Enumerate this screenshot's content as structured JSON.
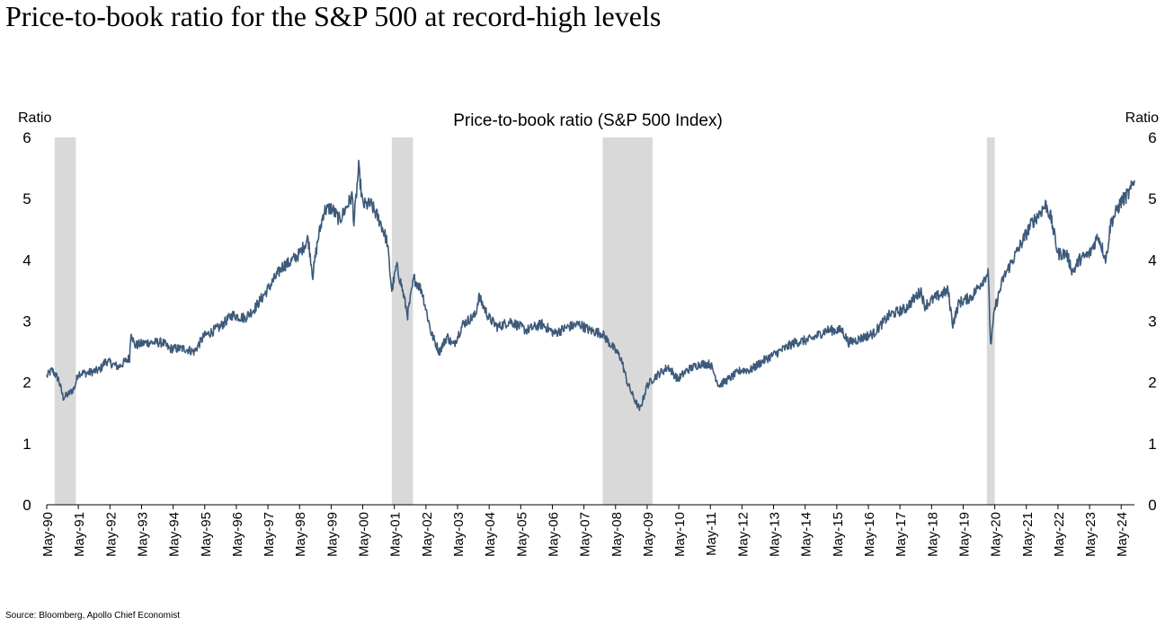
{
  "headline": "Price-to-book ratio for the S&P 500 at record-high levels",
  "source": "Source: Bloomberg, Apollo Chief Economist",
  "colors": {
    "line": "#3d5a7a",
    "recession": "#d9d9d9",
    "axis": "#000000"
  },
  "chart_data": {
    "type": "line",
    "title": "Price-to-book ratio (S&P 500 Index)",
    "ylabel_left": "Ratio",
    "ylabel_right": "Ratio",
    "xlabel": "",
    "ylim": [
      0,
      6
    ],
    "yticks": [
      0,
      1,
      2,
      3,
      4,
      5,
      6
    ],
    "x_start": 1990.33,
    "x_end": 2024.75,
    "xticks": [
      {
        "label": "May-90",
        "t": 1990.33
      },
      {
        "label": "May-91",
        "t": 1991.33
      },
      {
        "label": "May-92",
        "t": 1992.33
      },
      {
        "label": "May-93",
        "t": 1993.33
      },
      {
        "label": "May-94",
        "t": 1994.33
      },
      {
        "label": "May-95",
        "t": 1995.33
      },
      {
        "label": "May-96",
        "t": 1996.33
      },
      {
        "label": "May-97",
        "t": 1997.33
      },
      {
        "label": "May-98",
        "t": 1998.33
      },
      {
        "label": "May-99",
        "t": 1999.33
      },
      {
        "label": "May-00",
        "t": 2000.33
      },
      {
        "label": "May-01",
        "t": 2001.33
      },
      {
        "label": "May-02",
        "t": 2002.33
      },
      {
        "label": "May-03",
        "t": 2003.33
      },
      {
        "label": "May-04",
        "t": 2004.33
      },
      {
        "label": "May-05",
        "t": 2005.33
      },
      {
        "label": "May-06",
        "t": 2006.33
      },
      {
        "label": "May-07",
        "t": 2007.33
      },
      {
        "label": "May-08",
        "t": 2008.33
      },
      {
        "label": "May-09",
        "t": 2009.33
      },
      {
        "label": "May-10",
        "t": 2010.33
      },
      {
        "label": "May-11",
        "t": 2011.33
      },
      {
        "label": "May-12",
        "t": 2012.33
      },
      {
        "label": "May-13",
        "t": 2013.33
      },
      {
        "label": "May-14",
        "t": 2014.33
      },
      {
        "label": "May-15",
        "t": 2015.33
      },
      {
        "label": "May-16",
        "t": 2016.33
      },
      {
        "label": "May-17",
        "t": 2017.33
      },
      {
        "label": "May-18",
        "t": 2018.33
      },
      {
        "label": "May-19",
        "t": 2019.33
      },
      {
        "label": "May-20",
        "t": 2020.33
      },
      {
        "label": "May-21",
        "t": 2021.33
      },
      {
        "label": "May-22",
        "t": 2022.33
      },
      {
        "label": "May-23",
        "t": 2023.33
      },
      {
        "label": "May-24",
        "t": 2024.33
      }
    ],
    "recessions": [
      {
        "start": 1990.58,
        "end": 1991.25
      },
      {
        "start": 2001.25,
        "end": 2001.92
      },
      {
        "start": 2007.92,
        "end": 2009.5
      },
      {
        "start": 2020.08,
        "end": 2020.33
      }
    ],
    "series": [
      {
        "name": "Price-to-book ratio (S&P 500 Index)",
        "points": [
          [
            1990.33,
            2.1
          ],
          [
            1990.5,
            2.2
          ],
          [
            1990.7,
            2.05
          ],
          [
            1990.85,
            1.75
          ],
          [
            1991.0,
            1.8
          ],
          [
            1991.2,
            1.9
          ],
          [
            1991.33,
            2.15
          ],
          [
            1991.6,
            2.15
          ],
          [
            1992.0,
            2.2
          ],
          [
            1992.2,
            2.35
          ],
          [
            1992.6,
            2.25
          ],
          [
            1992.95,
            2.4
          ],
          [
            1993.0,
            2.85
          ],
          [
            1993.1,
            2.6
          ],
          [
            1993.5,
            2.65
          ],
          [
            1994.0,
            2.65
          ],
          [
            1994.2,
            2.55
          ],
          [
            1994.7,
            2.55
          ],
          [
            1995.0,
            2.5
          ],
          [
            1995.3,
            2.75
          ],
          [
            1995.8,
            2.9
          ],
          [
            1996.2,
            3.1
          ],
          [
            1996.6,
            3.05
          ],
          [
            1996.9,
            3.2
          ],
          [
            1997.3,
            3.5
          ],
          [
            1997.8,
            3.9
          ],
          [
            1998.0,
            3.95
          ],
          [
            1998.33,
            4.1
          ],
          [
            1998.6,
            4.35
          ],
          [
            1998.75,
            3.75
          ],
          [
            1998.9,
            4.3
          ],
          [
            1999.1,
            4.8
          ],
          [
            1999.33,
            4.85
          ],
          [
            1999.6,
            4.65
          ],
          [
            1999.9,
            4.95
          ],
          [
            2000.0,
            5.05
          ],
          [
            2000.05,
            4.6
          ],
          [
            2000.2,
            5.5
          ],
          [
            2000.33,
            4.9
          ],
          [
            2000.6,
            4.9
          ],
          [
            2000.9,
            4.6
          ],
          [
            2001.1,
            4.3
          ],
          [
            2001.25,
            3.5
          ],
          [
            2001.4,
            3.9
          ],
          [
            2001.55,
            3.6
          ],
          [
            2001.75,
            3.1
          ],
          [
            2001.95,
            3.7
          ],
          [
            2002.2,
            3.5
          ],
          [
            2002.5,
            2.8
          ],
          [
            2002.75,
            2.5
          ],
          [
            2003.0,
            2.75
          ],
          [
            2003.2,
            2.6
          ],
          [
            2003.5,
            2.95
          ],
          [
            2003.9,
            3.1
          ],
          [
            2004.0,
            3.4
          ],
          [
            2004.33,
            3.05
          ],
          [
            2004.6,
            2.9
          ],
          [
            2005.0,
            3.0
          ],
          [
            2005.5,
            2.85
          ],
          [
            2006.0,
            2.95
          ],
          [
            2006.4,
            2.8
          ],
          [
            2006.8,
            2.9
          ],
          [
            2007.2,
            2.95
          ],
          [
            2007.5,
            2.85
          ],
          [
            2007.9,
            2.8
          ],
          [
            2008.2,
            2.6
          ],
          [
            2008.5,
            2.4
          ],
          [
            2008.7,
            2.0
          ],
          [
            2008.9,
            1.75
          ],
          [
            2009.1,
            1.55
          ],
          [
            2009.33,
            1.95
          ],
          [
            2009.6,
            2.1
          ],
          [
            2010.0,
            2.25
          ],
          [
            2010.3,
            2.05
          ],
          [
            2010.6,
            2.2
          ],
          [
            2011.0,
            2.3
          ],
          [
            2011.33,
            2.3
          ],
          [
            2011.6,
            1.95
          ],
          [
            2011.9,
            2.05
          ],
          [
            2012.3,
            2.2
          ],
          [
            2012.6,
            2.2
          ],
          [
            2013.0,
            2.35
          ],
          [
            2013.5,
            2.5
          ],
          [
            2014.0,
            2.65
          ],
          [
            2014.5,
            2.7
          ],
          [
            2015.0,
            2.85
          ],
          [
            2015.5,
            2.85
          ],
          [
            2015.7,
            2.65
          ],
          [
            2016.0,
            2.7
          ],
          [
            2016.5,
            2.8
          ],
          [
            2017.0,
            3.1
          ],
          [
            2017.5,
            3.2
          ],
          [
            2018.0,
            3.5
          ],
          [
            2018.1,
            3.25
          ],
          [
            2018.5,
            3.4
          ],
          [
            2018.85,
            3.5
          ],
          [
            2019.0,
            2.95
          ],
          [
            2019.2,
            3.3
          ],
          [
            2019.6,
            3.4
          ],
          [
            2020.0,
            3.7
          ],
          [
            2020.12,
            3.8
          ],
          [
            2020.2,
            2.6
          ],
          [
            2020.33,
            3.2
          ],
          [
            2020.6,
            3.7
          ],
          [
            2020.9,
            4.0
          ],
          [
            2021.2,
            4.3
          ],
          [
            2021.5,
            4.6
          ],
          [
            2021.8,
            4.8
          ],
          [
            2021.95,
            4.9
          ],
          [
            2022.1,
            4.7
          ],
          [
            2022.33,
            4.1
          ],
          [
            2022.6,
            4.1
          ],
          [
            2022.8,
            3.8
          ],
          [
            2023.0,
            4.0
          ],
          [
            2023.33,
            4.1
          ],
          [
            2023.6,
            4.4
          ],
          [
            2023.85,
            4.0
          ],
          [
            2024.0,
            4.6
          ],
          [
            2024.33,
            4.95
          ],
          [
            2024.6,
            5.1
          ],
          [
            2024.75,
            5.3
          ]
        ]
      }
    ]
  }
}
